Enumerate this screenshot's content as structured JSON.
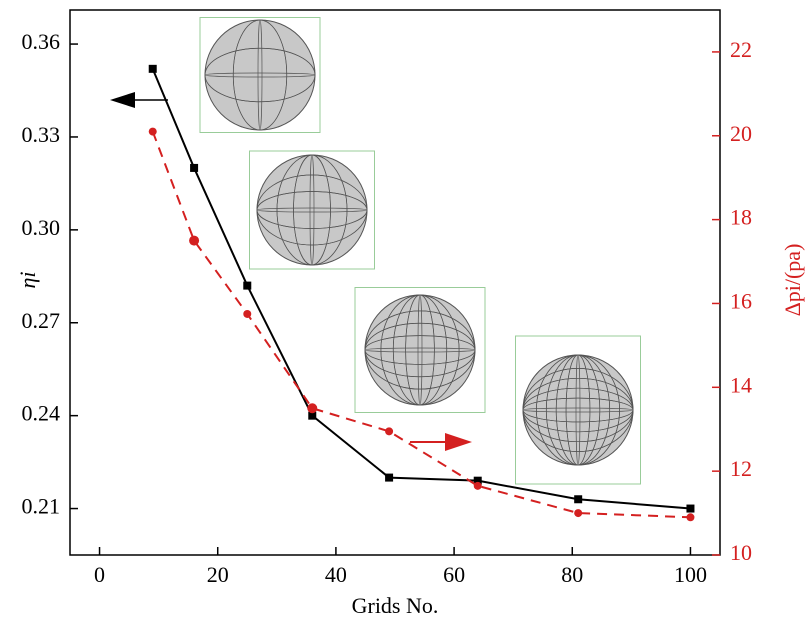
{
  "chart_data": {
    "type": "line",
    "x_label": "Grids No.",
    "y_label": "ηi",
    "y2_label": "Δpi/(pa)",
    "x": [
      9,
      16,
      25,
      36,
      49,
      64,
      81,
      100
    ],
    "series": [
      {
        "name": "ηi",
        "color": "#000000",
        "marker": "square",
        "dash": false,
        "values": [
          0.352,
          0.32,
          0.282,
          0.24,
          0.22,
          0.219,
          0.213,
          0.21
        ]
      },
      {
        "name": "Δpi",
        "color": "#d42020",
        "marker": "circle",
        "dash": true,
        "axis": "y2",
        "values": [
          20.1,
          17.5,
          15.75,
          13.5,
          12.95,
          11.65,
          11.0,
          10.9
        ]
      }
    ],
    "xlim": [
      -5,
      105
    ],
    "xticks": [
      0,
      20,
      40,
      60,
      80,
      100
    ],
    "ylim": [
      0.195,
      0.371
    ],
    "yticks": [
      0.21,
      0.24,
      0.27,
      {
        "value": 0.3,
        "label": "0.30"
      },
      0.33,
      0.36
    ],
    "y2lim": [
      10,
      23
    ],
    "y2ticks": [
      10,
      12,
      14,
      16,
      18,
      20,
      22
    ],
    "y2color": "#d42020"
  }
}
